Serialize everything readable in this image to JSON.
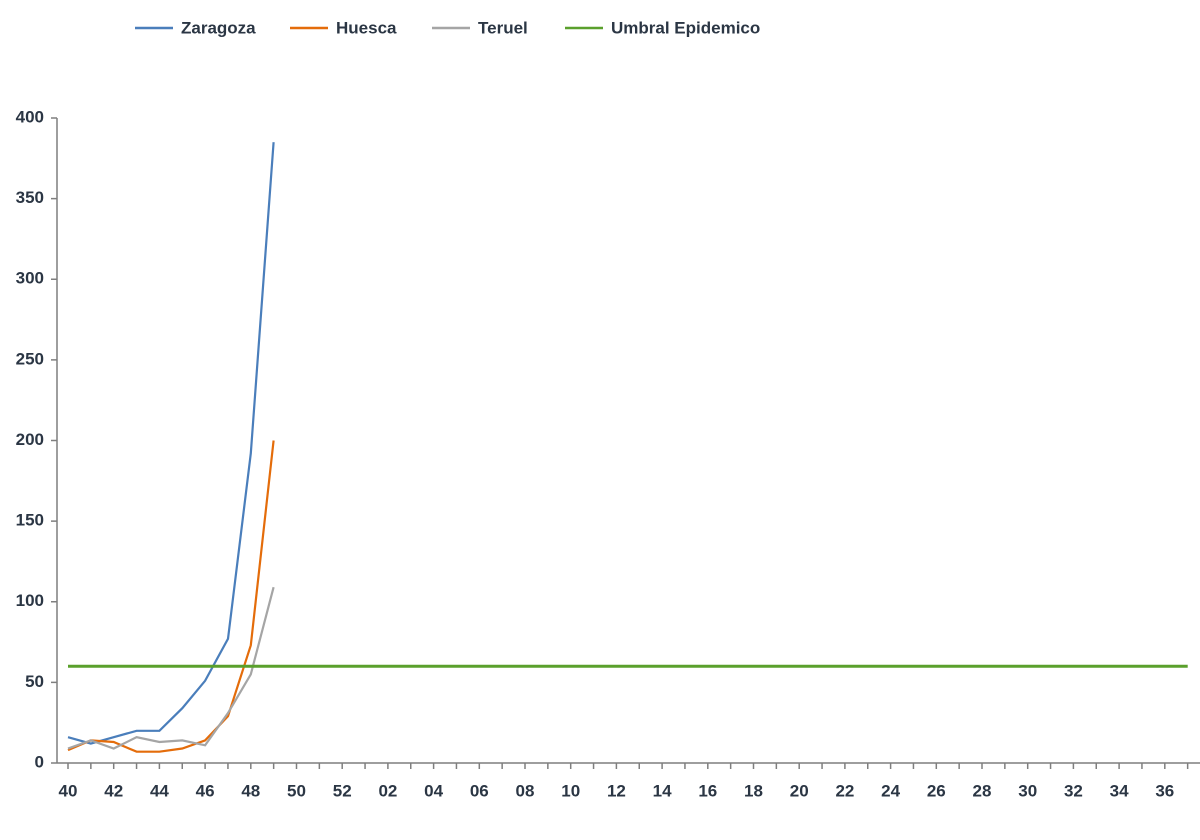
{
  "chart_data": {
    "type": "line",
    "categories": [
      "40",
      null,
      "42",
      null,
      "44",
      null,
      "46",
      null,
      "48",
      null,
      "50",
      null,
      "52",
      null,
      "02",
      null,
      "04",
      null,
      "06",
      null,
      "08",
      null,
      "10",
      null,
      "12",
      null,
      "14",
      null,
      "16",
      null,
      "18",
      null,
      "20",
      null,
      "22",
      null,
      "24",
      null,
      "26",
      null,
      "28",
      null,
      "30",
      null,
      "32",
      null,
      "34",
      null,
      "36",
      null
    ],
    "series": [
      {
        "name": "Zaragoza",
        "color": "#4a7ebb",
        "values": [
          16,
          12,
          16,
          20,
          20,
          34,
          51,
          77,
          192,
          385,
          null,
          null,
          null,
          null,
          null,
          null,
          null,
          null,
          null,
          null,
          null,
          null,
          null,
          null,
          null,
          null,
          null,
          null,
          null,
          null,
          null,
          null,
          null,
          null,
          null,
          null,
          null,
          null,
          null,
          null,
          null,
          null,
          null,
          null,
          null,
          null,
          null,
          null,
          null,
          null
        ]
      },
      {
        "name": "Huesca",
        "color": "#e46c0a",
        "values": [
          8,
          14,
          13,
          7,
          7,
          9,
          14,
          29,
          73,
          200,
          null,
          null,
          null,
          null,
          null,
          null,
          null,
          null,
          null,
          null,
          null,
          null,
          null,
          null,
          null,
          null,
          null,
          null,
          null,
          null,
          null,
          null,
          null,
          null,
          null,
          null,
          null,
          null,
          null,
          null,
          null,
          null,
          null,
          null,
          null,
          null,
          null,
          null,
          null,
          null
        ]
      },
      {
        "name": "Teruel",
        "color": "#a5a5a5",
        "values": [
          9,
          14,
          9,
          16,
          13,
          14,
          11,
          31,
          55,
          109,
          null,
          null,
          null,
          null,
          null,
          null,
          null,
          null,
          null,
          null,
          null,
          null,
          null,
          null,
          null,
          null,
          null,
          null,
          null,
          null,
          null,
          null,
          null,
          null,
          null,
          null,
          null,
          null,
          null,
          null,
          null,
          null,
          null,
          null,
          null,
          null,
          null,
          null,
          null,
          null
        ]
      },
      {
        "name": "Umbral Epidemico",
        "color": "#5aa02c",
        "values": [
          60,
          60,
          60,
          60,
          60,
          60,
          60,
          60,
          60,
          60,
          60,
          60,
          60,
          60,
          60,
          60,
          60,
          60,
          60,
          60,
          60,
          60,
          60,
          60,
          60,
          60,
          60,
          60,
          60,
          60,
          60,
          60,
          60,
          60,
          60,
          60,
          60,
          60,
          60,
          60,
          60,
          60,
          60,
          60,
          60,
          60,
          60,
          60,
          60,
          60
        ]
      }
    ],
    "ylim": [
      0,
      400
    ],
    "yticks": [
      0,
      50,
      100,
      150,
      200,
      250,
      300,
      350,
      400
    ],
    "grid": false
  }
}
